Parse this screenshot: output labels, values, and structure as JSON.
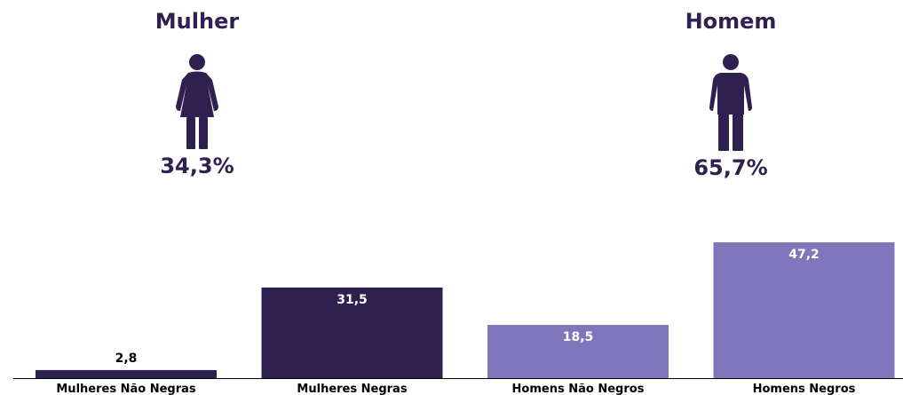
{
  "summary": [
    {
      "title": "Mulher",
      "icon": "woman-icon",
      "percent": "34,3%"
    },
    {
      "title": "Homem",
      "icon": "man-icon",
      "percent": "65,7%"
    }
  ],
  "colors": {
    "dark": "#2e2150",
    "light": "#8076bc",
    "text_dark": "#2e2150"
  },
  "chart_data": {
    "type": "bar",
    "categories": [
      "Mulheres Não Negras",
      "Mulheres Negras",
      "Homens Não Negros",
      "Homens Negros"
    ],
    "values": [
      2.8,
      31.5,
      18.5,
      47.2
    ],
    "value_labels": [
      "2,8",
      "31,5",
      "18,5",
      "47,2"
    ],
    "bar_colors": [
      "#2e2150",
      "#2e2150",
      "#8076bc",
      "#8076bc"
    ],
    "title": "",
    "xlabel": "",
    "ylabel": "",
    "ylim": [
      0,
      47.2
    ],
    "grid": false
  }
}
